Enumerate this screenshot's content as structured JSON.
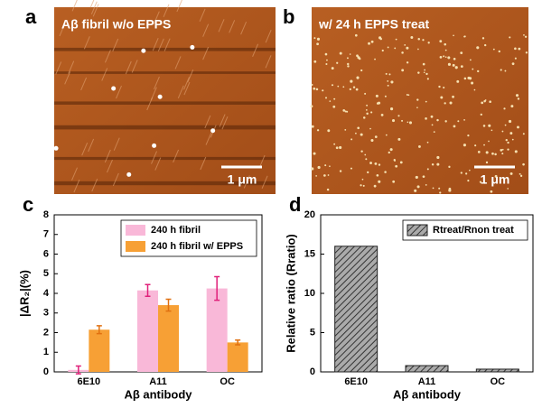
{
  "images": [
    {
      "label": "a",
      "caption": "Aβ fibril w/o EPPS",
      "scale_bar": "1 μm"
    },
    {
      "label": "b",
      "caption": "w/ 24 h EPPS treat",
      "scale_bar": "1 μm"
    }
  ],
  "chart_data": [
    {
      "type": "bar",
      "panel": "c",
      "y_label": "|ΔR₂|(%)",
      "x_label": "Aβ antibody",
      "categories": [
        "6E10",
        "A11",
        "OC"
      ],
      "series": [
        {
          "name": "240 h fibril",
          "color": "#f9b8d8",
          "values": [
            0.1,
            4.15,
            4.25
          ],
          "errors": [
            0.2,
            0.3,
            0.6
          ],
          "error_color": "#e0207a"
        },
        {
          "name": "240 h fibril w/ EPPS",
          "color": "#f7a035",
          "values": [
            2.15,
            3.4,
            1.5
          ],
          "errors": [
            0.2,
            0.3,
            0.12
          ],
          "error_color": "#e07010"
        }
      ],
      "ylim": [
        0,
        8
      ],
      "yticks": [
        0,
        1,
        2,
        3,
        4,
        5,
        6,
        7,
        8
      ],
      "legend": "top-right"
    },
    {
      "type": "bar",
      "panel": "d",
      "y_label": "Relative ratio (Rratio)",
      "x_label": "Aβ antibody",
      "categories": [
        "6E10",
        "A11",
        "OC"
      ],
      "series": [
        {
          "name": "Rtreat/Rnon treat",
          "color": "#888888",
          "hatch": true,
          "values": [
            16,
            0.8,
            0.35
          ]
        }
      ],
      "ylim": [
        0,
        20
      ],
      "yticks": [
        0,
        5,
        10,
        15,
        20
      ],
      "legend": "top-right"
    }
  ]
}
